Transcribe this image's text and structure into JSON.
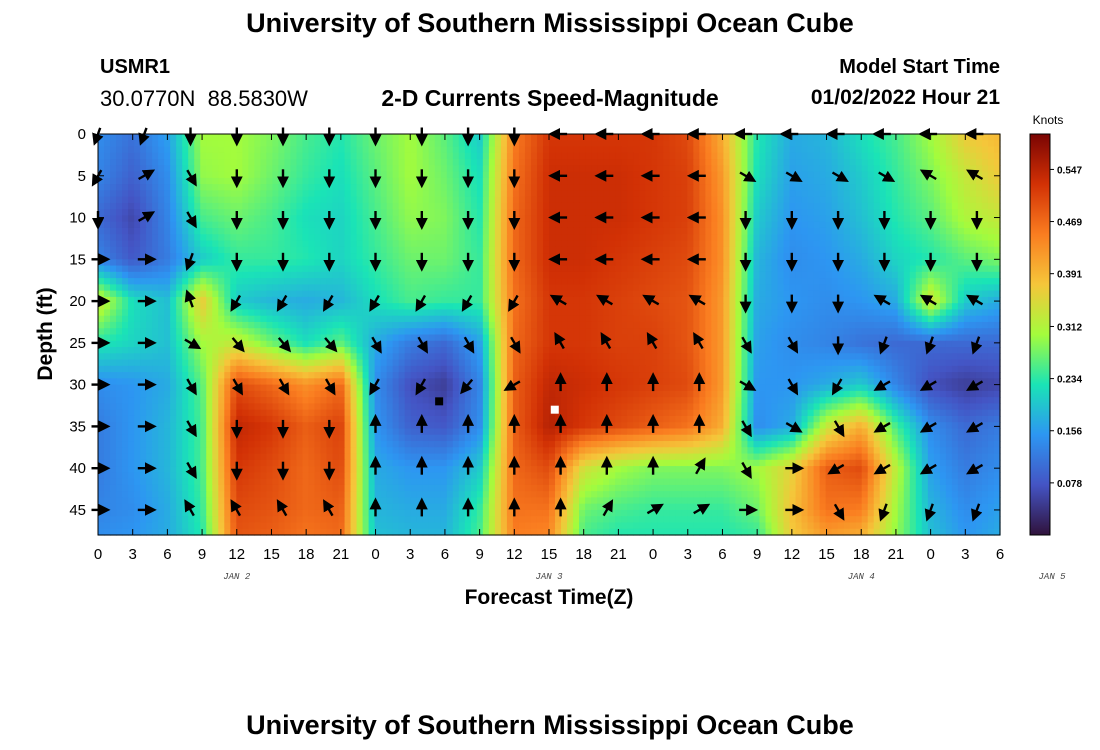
{
  "header": {
    "title": "University of Southern Mississippi Ocean Cube",
    "station_id": "USMR1",
    "station_coords": "30.0770N  88.5830W",
    "subtitle": "2-D Currents Speed-Magnitude",
    "model_start_label": "Model Start Time",
    "model_start_value": "01/02/2022 Hour 21"
  },
  "footer": {
    "title": "University of Southern Mississippi Ocean Cube"
  },
  "chart_data": {
    "type": "heatmap",
    "title": "2-D Currents Speed-Magnitude",
    "xlabel": "Forecast Time(Z)",
    "ylabel": "Depth (ft)",
    "x_tick_labels": [
      "0",
      "3",
      "6",
      "9",
      "12",
      "15",
      "18",
      "21",
      "0",
      "3",
      "6",
      "9",
      "12",
      "15",
      "18",
      "21",
      "0",
      "3",
      "6",
      "9",
      "12",
      "15",
      "18",
      "21",
      "0",
      "3",
      "6"
    ],
    "date_labels": [
      {
        "label": "JAN 2",
        "tick_index": 4
      },
      {
        "label": "JAN 3",
        "tick_index": 13
      },
      {
        "label": "JAN 4",
        "tick_index": 22
      },
      {
        "label": "JAN 5",
        "tick_index": 27.5
      }
    ],
    "y_ticks": [
      0,
      5,
      10,
      15,
      20,
      25,
      30,
      35,
      40,
      45
    ],
    "y_tick_labels": [
      "0",
      "5",
      "10",
      "15",
      "20",
      "25",
      "30",
      "35",
      "40",
      "45"
    ],
    "ylim": [
      0,
      48
    ],
    "time_range_hours": [
      0,
      78
    ],
    "colorbar": {
      "label": "Knots",
      "range": [
        0.0,
        0.6
      ],
      "ticks": [
        0.078,
        0.156,
        0.234,
        0.312,
        0.391,
        0.469,
        0.547
      ],
      "tick_labels": [
        "0.078",
        "0.156",
        "0.234",
        "0.312",
        "0.391",
        "0.469",
        "0.547"
      ],
      "stops": [
        "#30123b",
        "#4454c4",
        "#2d96f2",
        "#1ae4b6",
        "#a4fc3c",
        "#f5c63a",
        "#fa7d20",
        "#d23105",
        "#7a0403"
      ]
    },
    "speed_field": {
      "time_hours": [
        0,
        3,
        6,
        9,
        12,
        15,
        18,
        21,
        24,
        27,
        30,
        33,
        36,
        39,
        42,
        45,
        48,
        51,
        54,
        57,
        60,
        63,
        66,
        69,
        72,
        75,
        78
      ],
      "depth_ft": [
        0,
        5,
        10,
        15,
        20,
        25,
        30,
        35,
        40,
        45,
        48
      ],
      "values_knots": [
        [
          0.14,
          0.11,
          0.16,
          0.3,
          0.3,
          0.28,
          0.25,
          0.23,
          0.27,
          0.3,
          0.26,
          0.2,
          0.45,
          0.52,
          0.52,
          0.52,
          0.52,
          0.5,
          0.4,
          0.23,
          0.17,
          0.18,
          0.22,
          0.25,
          0.3,
          0.37,
          0.39
        ],
        [
          0.13,
          0.09,
          0.14,
          0.29,
          0.3,
          0.27,
          0.24,
          0.22,
          0.26,
          0.3,
          0.27,
          0.22,
          0.46,
          0.53,
          0.53,
          0.53,
          0.52,
          0.51,
          0.42,
          0.22,
          0.16,
          0.17,
          0.2,
          0.24,
          0.28,
          0.33,
          0.37
        ],
        [
          0.1,
          0.06,
          0.13,
          0.25,
          0.27,
          0.25,
          0.22,
          0.21,
          0.25,
          0.29,
          0.28,
          0.23,
          0.47,
          0.53,
          0.53,
          0.53,
          0.52,
          0.51,
          0.43,
          0.2,
          0.15,
          0.16,
          0.19,
          0.23,
          0.26,
          0.31,
          0.33
        ],
        [
          0.13,
          0.08,
          0.12,
          0.2,
          0.24,
          0.24,
          0.23,
          0.21,
          0.24,
          0.27,
          0.27,
          0.24,
          0.47,
          0.53,
          0.53,
          0.52,
          0.51,
          0.5,
          0.43,
          0.18,
          0.14,
          0.15,
          0.17,
          0.21,
          0.23,
          0.26,
          0.28
        ],
        [
          0.34,
          0.22,
          0.19,
          0.37,
          0.2,
          0.18,
          0.17,
          0.18,
          0.22,
          0.25,
          0.24,
          0.24,
          0.46,
          0.52,
          0.52,
          0.51,
          0.5,
          0.49,
          0.42,
          0.17,
          0.15,
          0.14,
          0.15,
          0.17,
          0.34,
          0.2,
          0.17
        ],
        [
          0.23,
          0.21,
          0.19,
          0.3,
          0.33,
          0.27,
          0.22,
          0.26,
          0.17,
          0.12,
          0.1,
          0.16,
          0.47,
          0.52,
          0.52,
          0.51,
          0.51,
          0.49,
          0.42,
          0.16,
          0.14,
          0.13,
          0.11,
          0.1,
          0.1,
          0.1,
          0.1
        ],
        [
          0.14,
          0.15,
          0.17,
          0.26,
          0.5,
          0.47,
          0.43,
          0.47,
          0.14,
          0.07,
          0.05,
          0.13,
          0.48,
          0.54,
          0.53,
          0.52,
          0.51,
          0.5,
          0.42,
          0.15,
          0.15,
          0.17,
          0.2,
          0.13,
          0.07,
          0.05,
          0.06
        ],
        [
          0.12,
          0.15,
          0.18,
          0.25,
          0.54,
          0.52,
          0.48,
          0.51,
          0.15,
          0.09,
          0.08,
          0.14,
          0.48,
          0.55,
          0.52,
          0.5,
          0.48,
          0.46,
          0.4,
          0.14,
          0.17,
          0.33,
          0.4,
          0.25,
          0.14,
          0.1,
          0.12
        ],
        [
          0.12,
          0.15,
          0.18,
          0.25,
          0.52,
          0.5,
          0.47,
          0.5,
          0.17,
          0.15,
          0.15,
          0.2,
          0.47,
          0.5,
          0.34,
          0.3,
          0.28,
          0.28,
          0.28,
          0.3,
          0.36,
          0.48,
          0.5,
          0.32,
          0.16,
          0.12,
          0.14
        ],
        [
          0.13,
          0.14,
          0.17,
          0.24,
          0.5,
          0.49,
          0.47,
          0.48,
          0.18,
          0.17,
          0.17,
          0.24,
          0.46,
          0.46,
          0.27,
          0.25,
          0.24,
          0.24,
          0.24,
          0.27,
          0.38,
          0.46,
          0.45,
          0.3,
          0.18,
          0.14,
          0.16
        ],
        [
          0.14,
          0.15,
          0.17,
          0.23,
          0.49,
          0.48,
          0.46,
          0.47,
          0.19,
          0.18,
          0.18,
          0.25,
          0.45,
          0.44,
          0.25,
          0.23,
          0.23,
          0.23,
          0.23,
          0.24,
          0.37,
          0.42,
          0.4,
          0.29,
          0.19,
          0.15,
          0.17
        ]
      ]
    },
    "vectors": {
      "time_hours": [
        0,
        4,
        8,
        12,
        16,
        20,
        24,
        28,
        32,
        36,
        40,
        44,
        48,
        52,
        56,
        60,
        64,
        68,
        72,
        76
      ],
      "depth_ft": [
        0,
        5,
        10,
        15,
        20,
        25,
        30,
        35,
        40,
        45
      ],
      "direction_deg": [
        [
          200,
          200,
          180,
          180,
          180,
          180,
          180,
          180,
          180,
          180,
          270,
          270,
          270,
          270,
          270,
          270,
          270,
          270,
          270,
          270
        ],
        [
          210,
          60,
          150,
          180,
          180,
          180,
          180,
          180,
          180,
          180,
          270,
          270,
          270,
          270,
          120,
          120,
          120,
          120,
          300,
          300
        ],
        [
          180,
          60,
          150,
          180,
          180,
          180,
          180,
          180,
          180,
          180,
          270,
          270,
          270,
          270,
          180,
          180,
          180,
          180,
          180,
          180
        ],
        [
          90,
          90,
          200,
          180,
          180,
          180,
          180,
          180,
          180,
          180,
          270,
          270,
          270,
          270,
          180,
          180,
          180,
          180,
          180,
          180
        ],
        [
          90,
          90,
          340,
          210,
          210,
          210,
          210,
          210,
          210,
          210,
          300,
          300,
          300,
          300,
          180,
          180,
          180,
          300,
          300,
          300
        ],
        [
          90,
          90,
          120,
          140,
          140,
          140,
          150,
          150,
          150,
          150,
          330,
          330,
          330,
          330,
          150,
          150,
          180,
          200,
          200,
          200
        ],
        [
          90,
          90,
          150,
          150,
          150,
          150,
          210,
          210,
          220,
          240,
          0,
          0,
          0,
          0,
          120,
          150,
          210,
          240,
          240,
          240
        ],
        [
          90,
          90,
          150,
          180,
          180,
          180,
          0,
          0,
          0,
          0,
          0,
          0,
          0,
          0,
          150,
          120,
          150,
          240,
          240,
          240
        ],
        [
          90,
          90,
          150,
          180,
          180,
          180,
          0,
          0,
          0,
          0,
          0,
          0,
          0,
          30,
          150,
          90,
          240,
          240,
          240,
          240
        ],
        [
          90,
          90,
          330,
          330,
          330,
          330,
          0,
          0,
          0,
          0,
          0,
          30,
          60,
          60,
          90,
          90,
          150,
          200,
          200,
          200
        ]
      ]
    },
    "markers": [
      {
        "name": "black-square",
        "time_hours": 29.5,
        "depth_ft": 32,
        "color": "#000000"
      },
      {
        "name": "white-square",
        "time_hours": 39.5,
        "depth_ft": 33,
        "color": "#ffffff"
      }
    ]
  }
}
